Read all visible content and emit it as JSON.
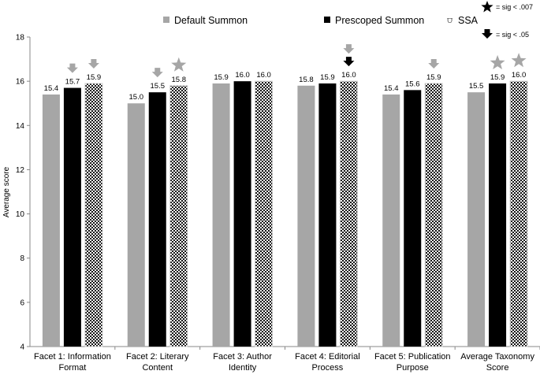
{
  "chart_data": {
    "type": "bar",
    "title": "",
    "xlabel": "",
    "ylabel": "Average score",
    "ylim": [
      4,
      18
    ],
    "yticks": [
      4,
      6,
      8,
      10,
      12,
      14,
      16,
      18
    ],
    "grid": false,
    "legend_position": "top",
    "categories": [
      [
        "Facet 1: Information",
        "Format"
      ],
      [
        "Facet 2: Literary",
        "Content"
      ],
      [
        "Facet 3: Author",
        "Identity"
      ],
      [
        "Facet 4: Editorial",
        "Process"
      ],
      [
        "Facet 5: Publication",
        "Purpose"
      ],
      [
        "Average Taxonomy",
        "Score"
      ]
    ],
    "series": [
      {
        "name": "Default Summon",
        "color": "#a6a6a6",
        "pattern": "solid",
        "values": [
          15.4,
          15.0,
          15.9,
          15.8,
          15.4,
          15.5
        ]
      },
      {
        "name": "Prescoped Summon",
        "color": "#000000",
        "pattern": "solid",
        "values": [
          15.7,
          15.5,
          16.0,
          15.9,
          15.6,
          15.9
        ]
      },
      {
        "name": "SSA",
        "color": "#000000",
        "pattern": "dotted-mesh",
        "values": [
          15.9,
          15.8,
          16.0,
          16.0,
          15.9,
          16.0
        ]
      }
    ],
    "significance_markers": [
      {
        "category": 0,
        "series": 1,
        "marker": "arrow",
        "color": "#a6a6a6"
      },
      {
        "category": 0,
        "series": 2,
        "marker": "arrow",
        "color": "#a6a6a6"
      },
      {
        "category": 1,
        "series": 1,
        "marker": "arrow",
        "color": "#a6a6a6"
      },
      {
        "category": 1,
        "series": 2,
        "marker": "star",
        "color": "#a6a6a6"
      },
      {
        "category": 3,
        "series": 2,
        "marker": "arrow",
        "color": "#a6a6a6"
      },
      {
        "category": 3,
        "series": 2,
        "marker": "arrow",
        "color": "#000000"
      },
      {
        "category": 4,
        "series": 2,
        "marker": "arrow",
        "color": "#a6a6a6"
      },
      {
        "category": 5,
        "series": 1,
        "marker": "star",
        "color": "#a6a6a6"
      },
      {
        "category": 5,
        "series": 2,
        "marker": "star",
        "color": "#a6a6a6"
      }
    ],
    "key": [
      {
        "marker": "star",
        "label": "= sig < .007"
      },
      {
        "marker": "arrow",
        "label": "= sig < .05"
      }
    ]
  }
}
